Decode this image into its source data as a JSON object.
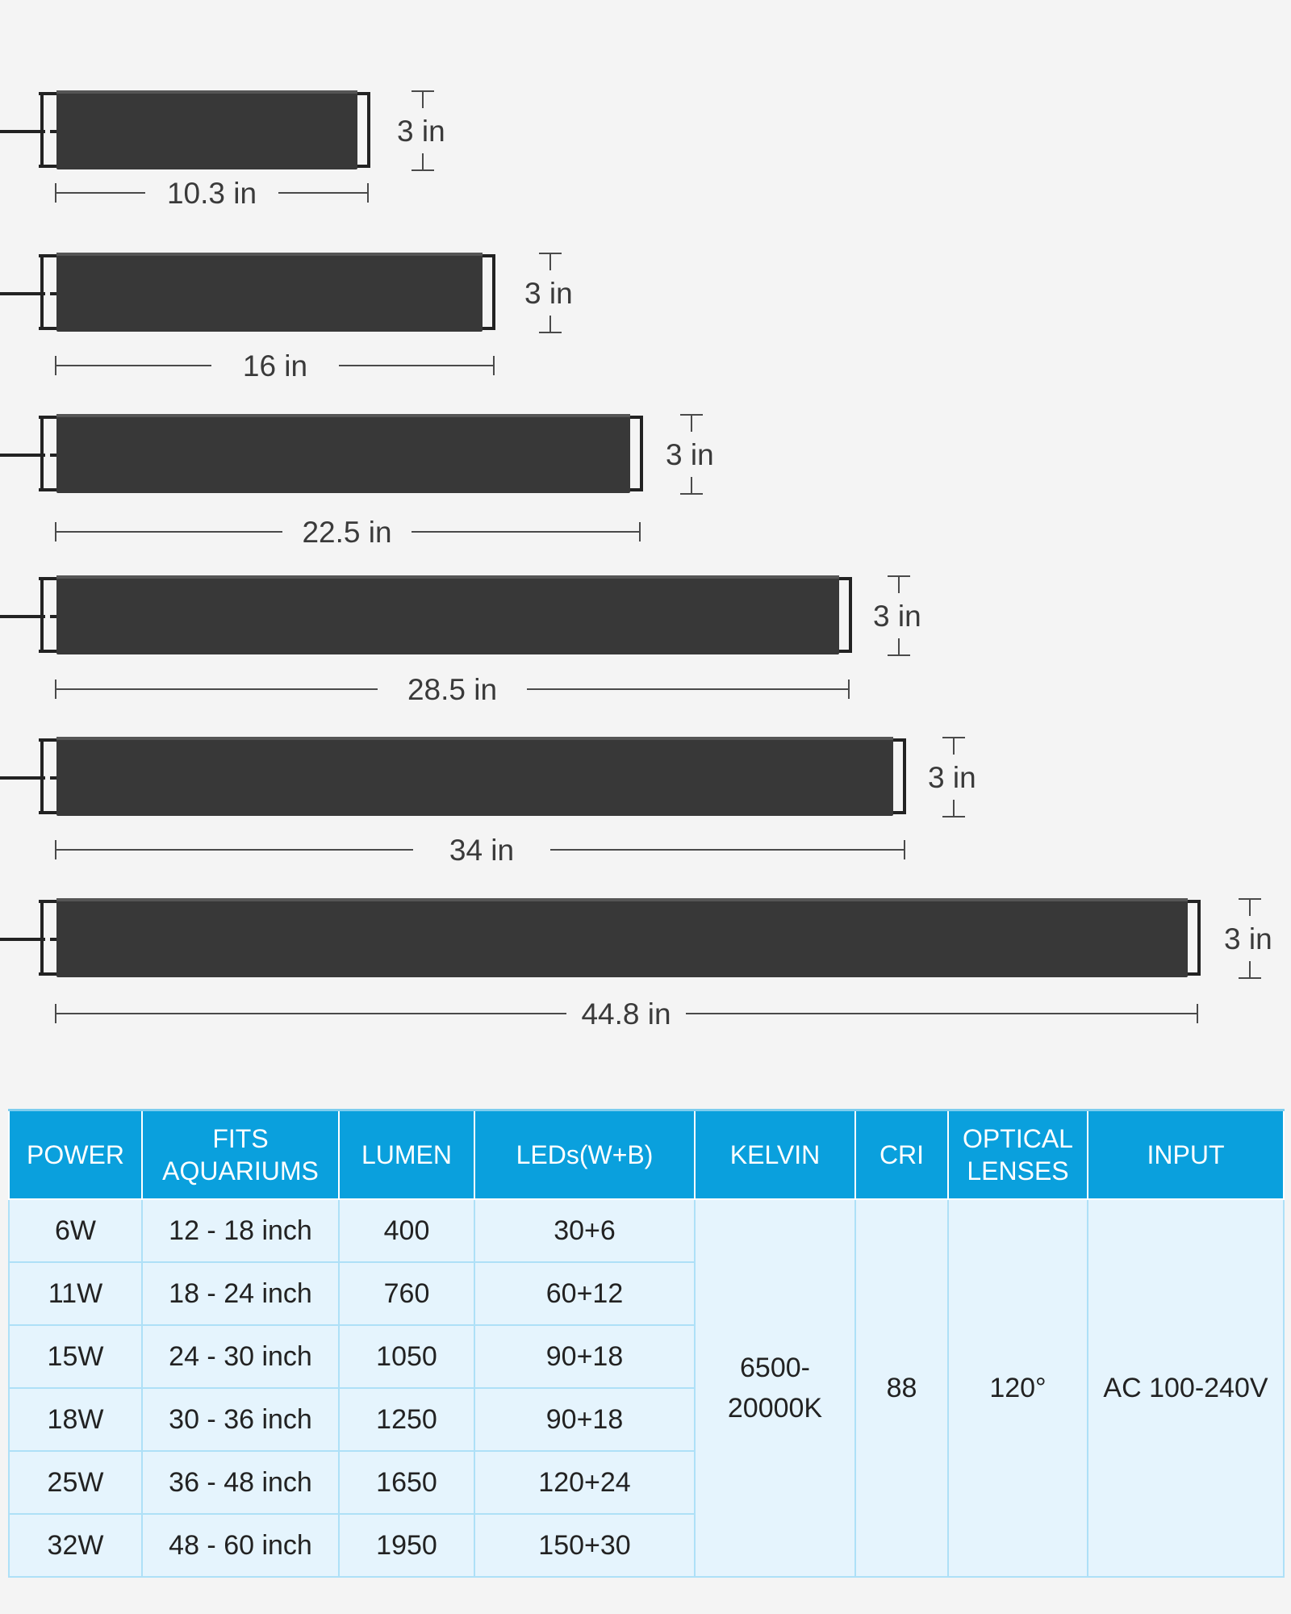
{
  "fixtures": [
    {
      "length_label": "10.3 in",
      "height_label": "3 in"
    },
    {
      "length_label": "16 in",
      "height_label": "3 in"
    },
    {
      "length_label": "22.5 in",
      "height_label": "3 in"
    },
    {
      "length_label": "28.5 in",
      "height_label": "3 in"
    },
    {
      "length_label": "34 in",
      "height_label": "3 in"
    },
    {
      "length_label": "44.8 in",
      "height_label": "3 in"
    }
  ],
  "colors": {
    "bar_body": "#383838",
    "header_bg": "#0aa0dd",
    "cell_bg": "#e5f4fd",
    "page_bg": "#f4f4f4"
  },
  "table": {
    "headers": {
      "power": "POWER",
      "fits_line1": "FITS",
      "fits_line2": "AQUARIUMS",
      "lumen": "LUMEN",
      "leds": "LEDs(W+B)",
      "kelvin": "KELVIN",
      "cri": "CRI",
      "optical_line1": "OPTICAL",
      "optical_line2": "LENSES",
      "input": "INPUT"
    },
    "rows": [
      {
        "power": "6W",
        "fits": "12 - 18 inch",
        "lumen": "400",
        "leds": "30+6"
      },
      {
        "power": "11W",
        "fits": "18 - 24 inch",
        "lumen": "760",
        "leds": "60+12"
      },
      {
        "power": "15W",
        "fits": "24 - 30 inch",
        "lumen": "1050",
        "leds": "90+18"
      },
      {
        "power": "18W",
        "fits": "30 - 36 inch",
        "lumen": "1250",
        "leds": "90+18"
      },
      {
        "power": "25W",
        "fits": "36 - 48 inch",
        "lumen": "1650",
        "leds": "120+24"
      },
      {
        "power": "32W",
        "fits": "48 - 60 inch",
        "lumen": "1950",
        "leds": "150+30"
      }
    ],
    "shared": {
      "kelvin_line1": "6500-",
      "kelvin_line2": "20000K",
      "cri": "88",
      "optical": "120°",
      "input": "AC 100-240V"
    }
  }
}
